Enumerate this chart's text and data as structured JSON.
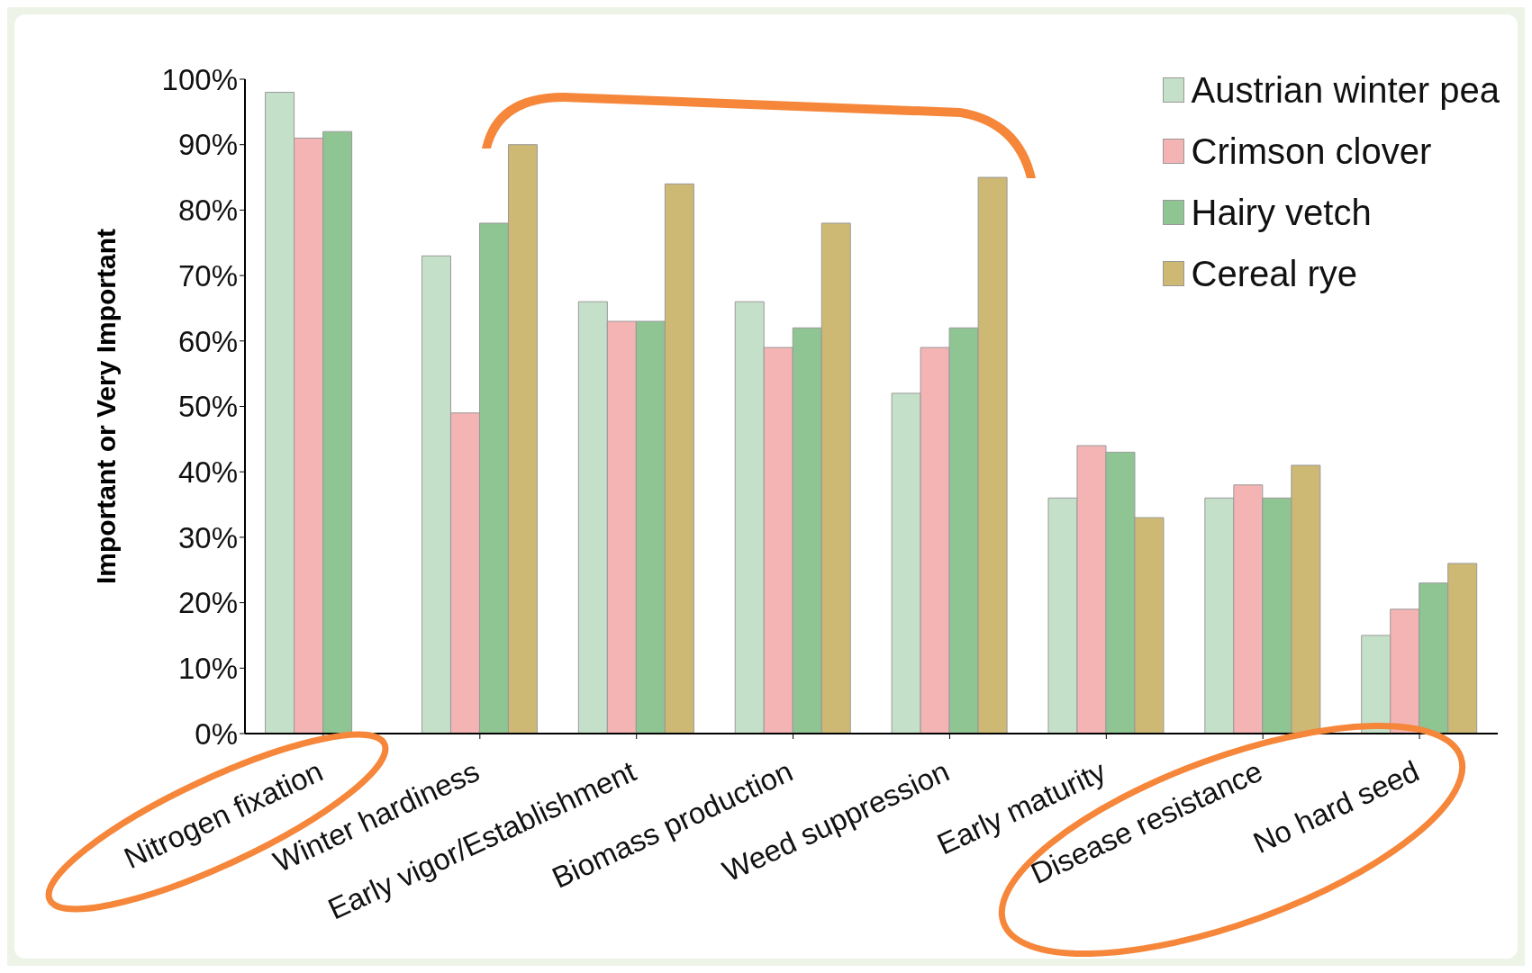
{
  "chart_data": {
    "type": "bar",
    "ylabel": "Important or Very Important",
    "categories": [
      "Nitrogen fixation",
      "Winter hardiness",
      "Early vigor/Establishment",
      "Biomass production",
      "Weed suppression",
      "Early maturity",
      "Disease resistance",
      "No hard seed"
    ],
    "series": [
      {
        "name": "Austrian winter pea",
        "color": "#c5e0c8",
        "values": [
          98,
          73,
          66,
          66,
          52,
          36,
          36,
          15
        ]
      },
      {
        "name": "Crimson clover",
        "color": "#f4b4b4",
        "values": [
          91,
          49,
          63,
          59,
          59,
          44,
          38,
          19
        ]
      },
      {
        "name": "Hairy vetch",
        "color": "#8fc493",
        "values": [
          92,
          78,
          63,
          62,
          62,
          43,
          36,
          23
        ]
      },
      {
        "name": "Cereal rye",
        "color": "#cdb974",
        "values": [
          null,
          90,
          84,
          78,
          85,
          33,
          41,
          26
        ]
      }
    ],
    "ylim": [
      0,
      100
    ],
    "yticks": [
      {
        "value": 0,
        "label": "0%"
      },
      {
        "value": 10,
        "label": "10%"
      },
      {
        "value": 20,
        "label": "20%"
      },
      {
        "value": 30,
        "label": "30%"
      },
      {
        "value": 40,
        "label": "40%"
      },
      {
        "value": 50,
        "label": "50%"
      },
      {
        "value": 60,
        "label": "60%"
      },
      {
        "value": 70,
        "label": "70%"
      },
      {
        "value": 80,
        "label": "80%"
      },
      {
        "value": 90,
        "label": "90%"
      },
      {
        "value": 100,
        "label": "100%"
      }
    ],
    "grid": false,
    "legend": "top right"
  }
}
